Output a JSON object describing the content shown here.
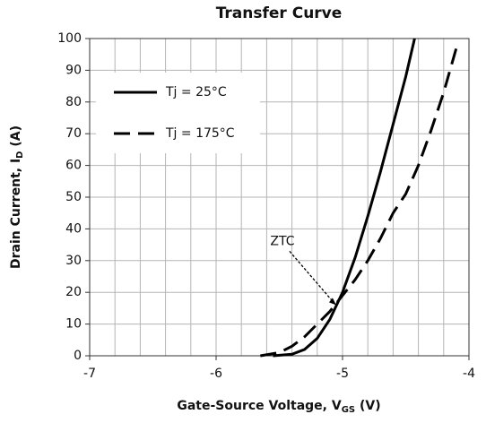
{
  "chart_data": {
    "type": "line",
    "title": "Transfer Curve",
    "xlabel": [
      "Gate-Source Voltage, V",
      "GS",
      " (V)"
    ],
    "ylabel": [
      "Drain Current, I",
      "D",
      " (A)"
    ],
    "xlim": [
      -7,
      -4
    ],
    "xticks": [
      -7,
      -6,
      -5,
      -4
    ],
    "x_minor_grid": [
      -6.8,
      -6.6,
      -6.4,
      -6.2,
      -5.8,
      -5.6,
      -5.4,
      -5.2,
      -4.8,
      -4.6,
      -4.4,
      -4.2
    ],
    "ylim": [
      0,
      100
    ],
    "yticks": [
      0,
      10,
      20,
      30,
      40,
      50,
      60,
      70,
      80,
      90,
      100
    ],
    "grid": true,
    "legend": "upper-left",
    "series": [
      {
        "name": "Tj = 25°C",
        "color": "#000000",
        "dash": "solid",
        "x": [
          -5.55,
          -5.4,
          -5.3,
          -5.2,
          -5.1,
          -5.0,
          -4.9,
          -4.8,
          -4.7,
          -4.6,
          -4.5,
          -4.43
        ],
        "values": [
          0,
          0.5,
          2,
          5.5,
          11.5,
          20,
          31,
          44,
          58,
          73,
          88,
          100
        ]
      },
      {
        "name": "Tj = 175°C",
        "color": "#000000",
        "dash": "dashed",
        "x": [
          -5.65,
          -5.5,
          -5.4,
          -5.3,
          -5.2,
          -5.1,
          -5.0,
          -4.9,
          -4.8,
          -4.7,
          -4.6,
          -4.5,
          -4.4,
          -4.3,
          -4.2,
          -4.1
        ],
        "values": [
          0,
          1,
          3,
          6,
          10,
          14,
          19,
          24,
          30,
          37,
          45,
          51,
          60,
          71,
          83,
          97
        ]
      }
    ],
    "annotation": {
      "text": "ZTC",
      "x": -5.05,
      "y": 16
    }
  }
}
